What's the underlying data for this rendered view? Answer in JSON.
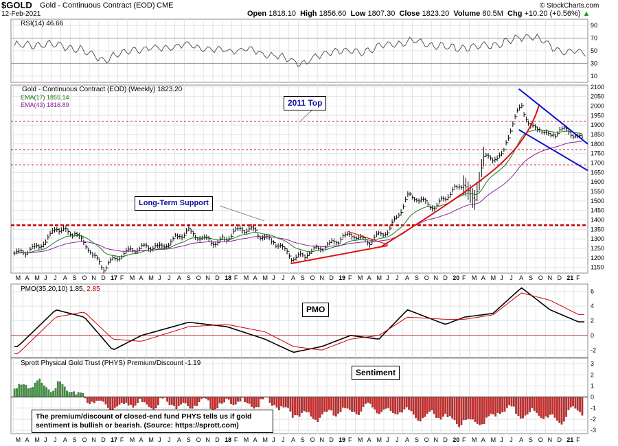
{
  "header": {
    "symbol": "$GOLD",
    "name": "Gold - Continuous Contract (EOD)",
    "exchange": "CME",
    "date": "12-Feb-2021",
    "open_label": "Open",
    "open": "1818.10",
    "high_label": "High",
    "high": "1856.60",
    "low_label": "Low",
    "low": "1807.30",
    "close_label": "Close",
    "close": "1823.20",
    "volume_label": "Volume",
    "volume": "80.5M",
    "chg_label": "Chg",
    "chg": "+10.20 (+0.56%)",
    "source": "© StockCharts.com",
    "up_arrow": "▲"
  },
  "panels": {
    "rsi": {
      "legend": "RSI(14) 46.66",
      "ticks": [
        "90",
        "70",
        "50",
        "30",
        "10"
      ]
    },
    "price": {
      "legend": "Gold - Continuous Contract (EOD) (Weekly) 1823.20",
      "ema17": "EMA(17) 1855.14",
      "ema43": "EMA(43) 1816.89",
      "ticks": [
        "2100",
        "2050",
        "2000",
        "1950",
        "1900",
        "1850",
        "1800",
        "1750",
        "1700",
        "1650",
        "1600",
        "1550",
        "1500",
        "1450",
        "1400",
        "1350",
        "1300",
        "1250",
        "1200",
        "1150"
      ]
    },
    "pmo": {
      "legend": "PMO(35,20,10) 1.85,",
      "legend_val2": "2.85",
      "ticks": [
        "6",
        "4",
        "2",
        "0",
        "-2"
      ]
    },
    "sentiment": {
      "legend": "Sprott Physical Gold Trust (PHYS) Premium/Discount -1.19",
      "ticks": [
        "3",
        "2",
        "1",
        "0",
        "-1",
        "-2",
        "-3"
      ]
    }
  },
  "annotations": {
    "top_2011": "2011 Top",
    "long_term_support": "Long-Term Support",
    "pmo": "PMO",
    "sentiment": "Sentiment",
    "sentiment_note": "The premium/discount of closed-end fund PHYS tells us if gold sentiment is bullish or bearish. (Source: https://sprott.com)"
  },
  "x_axis_labels": [
    "M",
    "A",
    "M",
    "J",
    "J",
    "A",
    "S",
    "O",
    "N",
    "D",
    "17",
    "F",
    "M",
    "A",
    "M",
    "J",
    "J",
    "A",
    "S",
    "O",
    "N",
    "D",
    "18",
    "F",
    "M",
    "A",
    "M",
    "J",
    "J",
    "A",
    "S",
    "O",
    "N",
    "D",
    "19",
    "F",
    "M",
    "A",
    "M",
    "J",
    "J",
    "A",
    "S",
    "O",
    "N",
    "D",
    "20",
    "F",
    "M",
    "A",
    "M",
    "J",
    "J",
    "A",
    "S",
    "O",
    "N",
    "D",
    "21",
    "F"
  ],
  "colors": {
    "price_bar": "#000000",
    "ema17": "#1a7a1a",
    "ema43": "#8a20a0",
    "support_red": "#cc0000",
    "trend_red": "#dd1111",
    "channel_blue": "#1010d0",
    "hist_green": "#3a9a3a",
    "hist_red": "#dd2222",
    "pmo_signal": "#cc0000"
  },
  "chart_data": [
    {
      "type": "line",
      "title": "RSI(14)",
      "x": [
        "2016-03",
        "2016-06",
        "2016-09",
        "2016-12",
        "2017-03",
        "2017-06",
        "2017-09",
        "2017-12",
        "2018-03",
        "2018-06",
        "2018-09",
        "2018-12",
        "2019-03",
        "2019-06",
        "2019-09",
        "2019-12",
        "2020-03",
        "2020-06",
        "2020-09",
        "2020-12",
        "2021-02"
      ],
      "values": [
        58,
        60,
        55,
        35,
        52,
        55,
        60,
        50,
        52,
        42,
        30,
        50,
        48,
        60,
        65,
        55,
        55,
        62,
        75,
        50,
        47
      ],
      "ylim": [
        0,
        100
      ]
    },
    {
      "type": "ohlc",
      "title": "Gold - Continuous Contract (EOD) (Weekly)",
      "x": [
        "2016-03",
        "2016-06",
        "2016-07",
        "2016-09",
        "2016-10",
        "2016-12",
        "2017-03",
        "2017-06",
        "2017-09",
        "2017-12",
        "2018-02",
        "2018-04",
        "2018-06",
        "2018-08",
        "2018-10",
        "2018-12",
        "2019-02",
        "2019-04",
        "2019-06",
        "2019-08",
        "2019-09",
        "2019-11",
        "2020-01",
        "2020-02",
        "2020-03",
        "2020-04",
        "2020-06",
        "2020-07",
        "2020-08",
        "2020-09",
        "2020-10",
        "2020-11",
        "2020-12",
        "2021-01",
        "2021-02"
      ],
      "close": [
        1220,
        1280,
        1360,
        1330,
        1270,
        1150,
        1250,
        1260,
        1340,
        1270,
        1350,
        1340,
        1280,
        1200,
        1230,
        1280,
        1320,
        1290,
        1340,
        1520,
        1510,
        1470,
        1560,
        1600,
        1480,
        1720,
        1740,
        1900,
        2000,
        1890,
        1880,
        1830,
        1880,
        1870,
        1823
      ],
      "series": [
        {
          "name": "EMA(17)",
          "last": 1855.14
        },
        {
          "name": "EMA(43)",
          "last": 1816.89
        }
      ],
      "ylim": [
        1120,
        2110
      ],
      "horizontal_lines": [
        1920,
        1770,
        1690,
        1372
      ]
    },
    {
      "type": "line",
      "title": "PMO(35,20,10)",
      "x": [
        "2016-03",
        "2016-07",
        "2016-10",
        "2017-01",
        "2017-04",
        "2017-09",
        "2018-01",
        "2018-05",
        "2018-08",
        "2018-11",
        "2019-02",
        "2019-05",
        "2019-08",
        "2019-12",
        "2020-02",
        "2020-05",
        "2020-08",
        "2020-11",
        "2021-02"
      ],
      "series": [
        {
          "name": "PMO",
          "values": [
            -1.5,
            3.5,
            2.5,
            -2,
            0,
            1.8,
            1.2,
            -0.5,
            -2.3,
            -1.5,
            0,
            -0.5,
            3.5,
            1.5,
            2.5,
            3,
            6.5,
            3.5,
            1.85
          ]
        },
        {
          "name": "Signal",
          "values": [
            -2.5,
            2.5,
            3.2,
            -0.5,
            -0.8,
            1.2,
            1.5,
            0.5,
            -1.5,
            -2,
            -0.5,
            0,
            2.5,
            2.2,
            2.2,
            2.8,
            5.8,
            4.8,
            2.85
          ]
        }
      ],
      "ylim": [
        -3,
        7
      ]
    },
    {
      "type": "bar",
      "title": "Sprott Physical Gold Trust (PHYS) Premium/Discount",
      "x": [
        "2016-03",
        "2016-06",
        "2016-09",
        "2016-12",
        "2017-03",
        "2017-06",
        "2017-09",
        "2017-12",
        "2018-03",
        "2018-06",
        "2018-09",
        "2018-12",
        "2019-03",
        "2019-06",
        "2019-09",
        "2019-12",
        "2020-03",
        "2020-06",
        "2020-09",
        "2020-12",
        "2021-02"
      ],
      "values": [
        0.8,
        1.2,
        0.4,
        -0.8,
        -0.6,
        -0.5,
        -0.7,
        -0.6,
        -0.5,
        -0.6,
        -1.8,
        -1.5,
        -1.0,
        -1.2,
        -1.6,
        -1.8,
        -2.5,
        -1.2,
        -1.5,
        -2.0,
        -1.19
      ],
      "ylim": [
        -3.3,
        3.5
      ]
    }
  ]
}
